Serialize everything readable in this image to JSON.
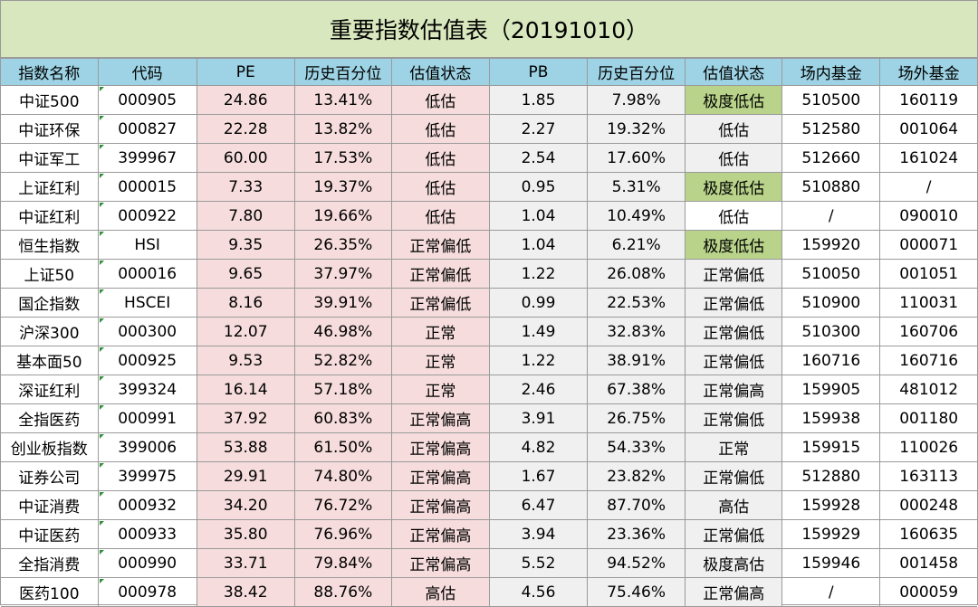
{
  "title": "重要指数估值表（20191010）",
  "columns": [
    "指数名称",
    "代码",
    "PE",
    "历史百分位",
    "估值状态",
    "PB",
    "历史百分位",
    "估值状态",
    "场内基金",
    "场外基金"
  ],
  "colors": {
    "title_bg": "#d8e7bd",
    "header_bg": "#9dd3e4",
    "pe_bg": "#f6dcdc",
    "pb_bg": "#f0f0f0",
    "extreme_low_bg": "#b9d48a"
  },
  "rows": [
    {
      "name": "中证500",
      "code": "000905",
      "pe": "24.86",
      "pe_pct": "13.41%",
      "pe_status": "低估",
      "pb": "1.85",
      "pb_pct": "7.98%",
      "pb_status": "极度低估",
      "exchange_fund": "510500",
      "otc_fund": "160119",
      "pb_style": "extreme-low"
    },
    {
      "name": "中证环保",
      "code": "000827",
      "pe": "22.28",
      "pe_pct": "13.82%",
      "pe_status": "低估",
      "pb": "2.27",
      "pb_pct": "19.32%",
      "pb_status": "低估",
      "exchange_fund": "512580",
      "otc_fund": "001064",
      "pb_style": "grey"
    },
    {
      "name": "中证军工",
      "code": "399967",
      "pe": "60.00",
      "pe_pct": "17.53%",
      "pe_status": "低估",
      "pb": "2.54",
      "pb_pct": "17.60%",
      "pb_status": "低估",
      "exchange_fund": "512660",
      "otc_fund": "161024",
      "pb_style": "grey"
    },
    {
      "name": "上证红利",
      "code": "000015",
      "pe": "7.33",
      "pe_pct": "19.37%",
      "pe_status": "低估",
      "pb": "0.95",
      "pb_pct": "5.31%",
      "pb_status": "极度低估",
      "exchange_fund": "510880",
      "otc_fund": "/",
      "pb_style": "extreme-low"
    },
    {
      "name": "中证红利",
      "code": "000922",
      "pe": "7.80",
      "pe_pct": "19.66%",
      "pe_status": "低估",
      "pb": "1.04",
      "pb_pct": "10.49%",
      "pb_status": "低估",
      "exchange_fund": "/",
      "otc_fund": "090010",
      "pb_style": "plain"
    },
    {
      "name": "恒生指数",
      "code": "HSI",
      "pe": "9.35",
      "pe_pct": "26.35%",
      "pe_status": "正常偏低",
      "pb": "1.04",
      "pb_pct": "6.21%",
      "pb_status": "极度低估",
      "exchange_fund": "159920",
      "otc_fund": "000071",
      "pb_style": "extreme-low"
    },
    {
      "name": "上证50",
      "code": "000016",
      "pe": "9.65",
      "pe_pct": "37.97%",
      "pe_status": "正常偏低",
      "pb": "1.22",
      "pb_pct": "26.08%",
      "pb_status": "正常偏低",
      "exchange_fund": "510050",
      "otc_fund": "001051",
      "pb_style": "grey"
    },
    {
      "name": "国企指数",
      "code": "HSCEI",
      "pe": "8.16",
      "pe_pct": "39.91%",
      "pe_status": "正常偏低",
      "pb": "0.99",
      "pb_pct": "22.53%",
      "pb_status": "正常偏低",
      "exchange_fund": "510900",
      "otc_fund": "110031",
      "pb_style": "grey"
    },
    {
      "name": "沪深300",
      "code": "000300",
      "pe": "12.07",
      "pe_pct": "46.98%",
      "pe_status": "正常",
      "pb": "1.49",
      "pb_pct": "32.83%",
      "pb_status": "正常偏低",
      "exchange_fund": "510300",
      "otc_fund": "160706",
      "pb_style": "grey"
    },
    {
      "name": "基本面50",
      "code": "000925",
      "pe": "9.53",
      "pe_pct": "52.82%",
      "pe_status": "正常",
      "pb": "1.22",
      "pb_pct": "38.91%",
      "pb_status": "正常偏低",
      "exchange_fund": "160716",
      "otc_fund": "160716",
      "pb_style": "grey"
    },
    {
      "name": "深证红利",
      "code": "399324",
      "pe": "16.14",
      "pe_pct": "57.18%",
      "pe_status": "正常",
      "pb": "2.46",
      "pb_pct": "67.38%",
      "pb_status": "正常偏高",
      "exchange_fund": "159905",
      "otc_fund": "481012",
      "pb_style": "grey"
    },
    {
      "name": "全指医药",
      "code": "000991",
      "pe": "37.92",
      "pe_pct": "60.83%",
      "pe_status": "正常偏高",
      "pb": "3.91",
      "pb_pct": "26.75%",
      "pb_status": "正常偏低",
      "exchange_fund": "159938",
      "otc_fund": "001180",
      "pb_style": "grey"
    },
    {
      "name": "创业板指数",
      "code": "399006",
      "pe": "53.88",
      "pe_pct": "61.50%",
      "pe_status": "正常偏高",
      "pb": "4.82",
      "pb_pct": "54.33%",
      "pb_status": "正常",
      "exchange_fund": "159915",
      "otc_fund": "110026",
      "pb_style": "grey"
    },
    {
      "name": "证券公司",
      "code": "399975",
      "pe": "29.91",
      "pe_pct": "74.80%",
      "pe_status": "正常偏高",
      "pb": "1.67",
      "pb_pct": "23.82%",
      "pb_status": "正常偏低",
      "exchange_fund": "512880",
      "otc_fund": "163113",
      "pb_style": "grey"
    },
    {
      "name": "中证消费",
      "code": "000932",
      "pe": "34.20",
      "pe_pct": "76.72%",
      "pe_status": "正常偏高",
      "pb": "6.47",
      "pb_pct": "87.70%",
      "pb_status": "高估",
      "exchange_fund": "159928",
      "otc_fund": "000248",
      "pb_style": "grey"
    },
    {
      "name": "中证医药",
      "code": "000933",
      "pe": "35.80",
      "pe_pct": "76.96%",
      "pe_status": "正常偏高",
      "pb": "3.94",
      "pb_pct": "23.36%",
      "pb_status": "正常偏低",
      "exchange_fund": "159929",
      "otc_fund": "160635",
      "pb_style": "grey"
    },
    {
      "name": "全指消费",
      "code": "000990",
      "pe": "33.71",
      "pe_pct": "79.84%",
      "pe_status": "正常偏高",
      "pb": "5.52",
      "pb_pct": "94.52%",
      "pb_status": "极度高估",
      "exchange_fund": "159946",
      "otc_fund": "001458",
      "pb_style": "grey"
    },
    {
      "name": "医药100",
      "code": "000978",
      "pe": "38.42",
      "pe_pct": "88.76%",
      "pe_status": "高估",
      "pb": "4.56",
      "pb_pct": "75.46%",
      "pb_status": "正常偏高",
      "exchange_fund": "/",
      "otc_fund": "000059",
      "pb_style": "grey"
    }
  ]
}
